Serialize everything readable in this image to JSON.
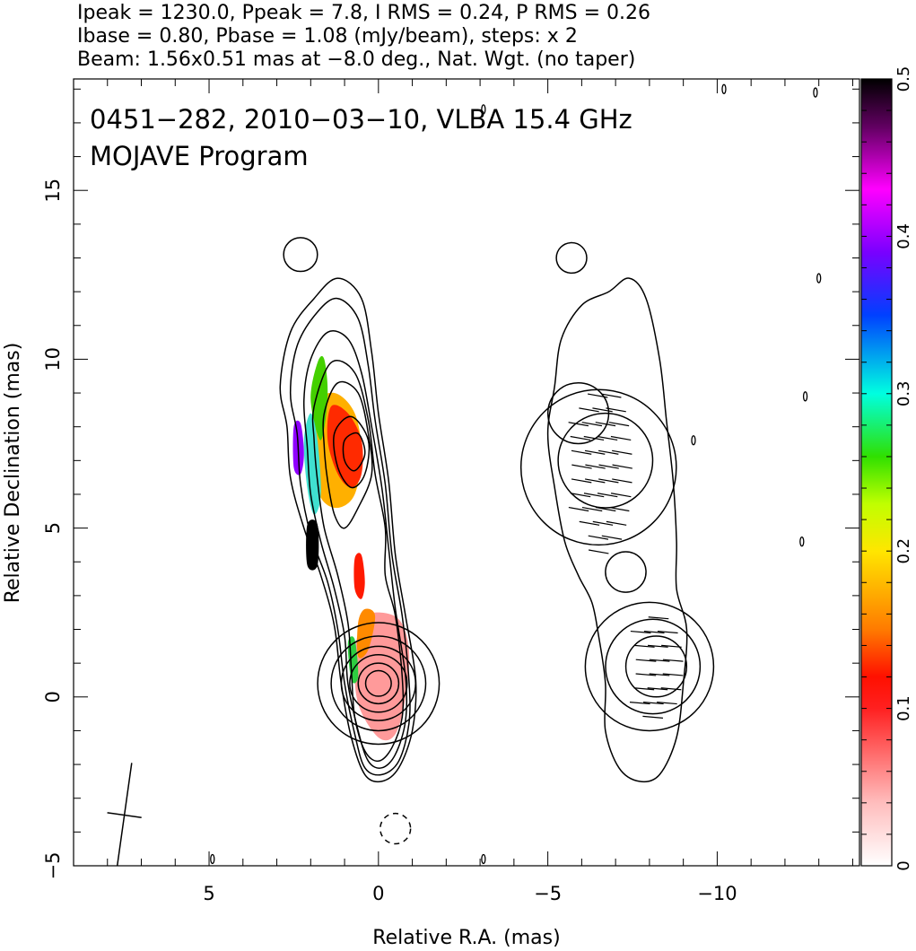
{
  "header": {
    "line1": "Ipeak = 1230.0, Ppeak = 7.8, I RMS = 0.24, P RMS = 0.26",
    "line2": "Ibase = 0.80, Pbase = 1.08 (mJy/beam), steps: x 2",
    "line3": "Beam: 1.56x0.51 mas at −8.0 deg., Nat. Wgt. (no taper)"
  },
  "chart_data": {
    "type": "contour",
    "title_line1": "0451−282, 2010−03−10, VLBA 15.4 GHz",
    "title_line2": "MOJAVE Program",
    "xlabel": "Relative R.A. (mas)",
    "ylabel": "Relative Declination (mas)",
    "xlim": [
      9.0,
      -14.2
    ],
    "ylim": [
      -5.0,
      18.3
    ],
    "x_ticks": [
      5,
      0,
      -5,
      -10
    ],
    "x_tick_labels": [
      "5",
      "0",
      "−5",
      "−10"
    ],
    "y_ticks": [
      -5,
      0,
      5,
      10,
      15
    ],
    "y_tick_labels": [
      "−5",
      "0",
      "5",
      "10",
      "15"
    ],
    "colorbar": {
      "range": [
        0,
        0.5
      ],
      "ticks": [
        0,
        0.1,
        0.2,
        0.3,
        0.4,
        0.5
      ],
      "tick_labels": [
        "0",
        "0.1",
        "0.2",
        "0.3",
        "0.4",
        "0.5"
      ]
    },
    "beam": {
      "major_mas": 1.56,
      "minor_mas": 0.51,
      "pa_deg": -8.0,
      "center": [
        7.5,
        -3.5
      ]
    },
    "left_panel": {
      "description": "Total intensity contours with fractional polarization color overlay",
      "contours": [
        [
          [
            2.9,
            9.2
          ],
          [
            2.6,
            10.8
          ],
          [
            1.9,
            11.8
          ],
          [
            1.2,
            12.4
          ],
          [
            0.5,
            11.8
          ],
          [
            0.2,
            10.2
          ],
          [
            0.0,
            8.4
          ],
          [
            -0.3,
            6.4
          ],
          [
            -0.5,
            4.2
          ],
          [
            -0.8,
            2.4
          ],
          [
            -1.1,
            0.5
          ],
          [
            -1.0,
            -1.0
          ],
          [
            -0.6,
            -2.1
          ],
          [
            -0.1,
            -2.5
          ],
          [
            0.4,
            -2.3
          ],
          [
            0.8,
            -1.2
          ],
          [
            1.1,
            0.4
          ],
          [
            1.3,
            2.1
          ],
          [
            1.7,
            3.6
          ],
          [
            2.2,
            5.0
          ],
          [
            2.6,
            6.5
          ],
          [
            2.7,
            8.0
          ]
        ],
        [
          [
            2.6,
            9.0
          ],
          [
            2.4,
            10.4
          ],
          [
            1.8,
            11.4
          ],
          [
            1.2,
            11.8
          ],
          [
            0.6,
            11.2
          ],
          [
            0.3,
            9.8
          ],
          [
            0.1,
            8.2
          ],
          [
            -0.2,
            6.3
          ],
          [
            -0.4,
            4.2
          ],
          [
            -0.7,
            2.4
          ],
          [
            -0.9,
            0.5
          ],
          [
            -0.9,
            -0.8
          ],
          [
            -0.6,
            -1.9
          ],
          [
            -0.1,
            -2.3
          ],
          [
            0.4,
            -2.1
          ],
          [
            0.7,
            -1.1
          ],
          [
            1.0,
            0.4
          ],
          [
            1.2,
            2.0
          ],
          [
            1.5,
            3.4
          ],
          [
            2.0,
            4.8
          ],
          [
            2.3,
            6.3
          ],
          [
            2.4,
            7.8
          ]
        ],
        [
          [
            2.2,
            8.8
          ],
          [
            2.0,
            10.0
          ],
          [
            1.5,
            10.8
          ],
          [
            0.9,
            10.6
          ],
          [
            0.5,
            9.6
          ],
          [
            0.2,
            8.0
          ],
          [
            -0.1,
            6.2
          ],
          [
            -0.3,
            4.4
          ],
          [
            -0.5,
            2.6
          ],
          [
            -0.8,
            0.6
          ],
          [
            -0.8,
            -0.7
          ],
          [
            -0.5,
            -1.7
          ],
          [
            -0.1,
            -2.1
          ],
          [
            0.3,
            -1.9
          ],
          [
            0.6,
            -1.0
          ],
          [
            0.9,
            0.4
          ],
          [
            1.0,
            1.8
          ],
          [
            1.3,
            3.2
          ],
          [
            1.7,
            4.6
          ],
          [
            2.0,
            6.0
          ],
          [
            2.1,
            7.4
          ]
        ],
        [
          [
            1.9,
            8.6
          ],
          [
            1.4,
            9.9
          ],
          [
            0.7,
            9.6
          ],
          [
            0.3,
            8.2
          ],
          [
            0.1,
            6.6
          ],
          [
            -0.2,
            5.0
          ],
          [
            -0.2,
            3.6
          ],
          [
            -0.5,
            2.4
          ],
          [
            -0.7,
            0.6
          ],
          [
            -0.7,
            -0.6
          ],
          [
            -0.4,
            -1.5
          ],
          [
            0.0,
            -1.9
          ],
          [
            0.4,
            -1.6
          ],
          [
            0.7,
            -0.6
          ],
          [
            0.8,
            0.8
          ],
          [
            0.9,
            2.2
          ],
          [
            1.2,
            3.6
          ],
          [
            1.6,
            5.0
          ],
          [
            1.8,
            6.4
          ],
          [
            1.9,
            7.6
          ]
        ],
        [
          [
            1.6,
            8.4
          ],
          [
            1.2,
            9.3
          ],
          [
            0.6,
            9.0
          ],
          [
            0.3,
            7.8
          ],
          [
            0.2,
            6.6
          ],
          [
            0.6,
            5.6
          ],
          [
            1.0,
            5.0
          ],
          [
            1.3,
            5.4
          ],
          [
            1.5,
            6.4
          ],
          [
            1.6,
            7.4
          ]
        ],
        [
          [
            1.3,
            7.8
          ],
          [
            0.8,
            8.3
          ],
          [
            0.3,
            7.6
          ],
          [
            0.4,
            6.6
          ],
          [
            0.8,
            6.2
          ],
          [
            1.2,
            6.8
          ]
        ],
        [
          [
            1.0,
            7.6
          ],
          [
            0.6,
            7.8
          ],
          [
            0.4,
            7.2
          ],
          [
            0.7,
            6.7
          ],
          [
            1.0,
            7.0
          ]
        ]
      ],
      "core_contour_radii": [
        [
          0.55,
          1.8
        ],
        [
          0.45,
          1.4
        ],
        [
          0.36,
          1.1
        ],
        [
          0.28,
          0.85
        ],
        [
          0.2,
          0.6
        ],
        [
          0.13,
          0.38
        ]
      ],
      "core_center": [
        0.0,
        0.4
      ],
      "small_contours": [
        [
          [
            2.3,
            13.1
          ],
          [
            0.17,
            0.5
          ]
        ],
        [
          [
            -0.5,
            -3.9
          ],
          [
            0.15,
            0.45
          ]
        ]
      ],
      "polarization_regions": [
        {
          "center": [
            1.4,
            7.2
          ],
          "color": "#ff7a00",
          "note": "upper jet region, frac. pol. ~0.1-0.2"
        },
        {
          "center": [
            0.9,
            7.4
          ],
          "color": "#ff2a00",
          "note": "red ~0.08"
        },
        {
          "center": [
            2.4,
            7.4
          ],
          "color": "#8f00ff",
          "note": "edge violet ~0.4"
        },
        {
          "center": [
            2.0,
            4.4
          ],
          "color": "#000000",
          "note": "black ~0.5"
        },
        {
          "center": [
            0.6,
            3.5
          ],
          "color": "#ff1a00",
          "note": "red ~0.08"
        },
        {
          "center": [
            -0.1,
            0.5
          ],
          "color": "#ff9a9a",
          "note": "core, low frac. pol."
        }
      ]
    },
    "right_panel": {
      "description": "Lowest total intensity contour with polarized intensity contours and EVPA vectors",
      "outer_contour": [
        [
          -5.2,
          9.2
        ],
        [
          -5.4,
          10.6
        ],
        [
          -6.0,
          11.6
        ],
        [
          -6.8,
          12.0
        ],
        [
          -7.4,
          12.4
        ],
        [
          -7.9,
          11.8
        ],
        [
          -8.3,
          10.0
        ],
        [
          -8.5,
          8.2
        ],
        [
          -8.7,
          6.4
        ],
        [
          -8.8,
          4.6
        ],
        [
          -8.8,
          3.2
        ],
        [
          -9.1,
          2.0
        ],
        [
          -9.0,
          0.4
        ],
        [
          -8.8,
          -1.2
        ],
        [
          -8.3,
          -2.3
        ],
        [
          -7.7,
          -2.5
        ],
        [
          -7.1,
          -2.1
        ],
        [
          -6.7,
          -1.0
        ],
        [
          -6.7,
          0.4
        ],
        [
          -6.5,
          1.8
        ],
        [
          -6.3,
          2.8
        ],
        [
          -5.9,
          3.6
        ],
        [
          -5.5,
          4.6
        ],
        [
          -5.2,
          6.2
        ],
        [
          -5.0,
          7.8
        ]
      ],
      "pol_contours": [
        [
          [
            -6.5,
            6.8
          ],
          [
            0.9,
            2.3
          ]
        ],
        [
          [
            -6.7,
            7.0
          ],
          [
            0.55,
            1.4
          ]
        ],
        [
          [
            -8.0,
            0.9
          ],
          [
            0.8,
            1.9
          ]
        ],
        [
          [
            -8.1,
            0.9
          ],
          [
            0.55,
            1.4
          ]
        ],
        [
          [
            -8.2,
            0.9
          ],
          [
            0.35,
            0.9
          ]
        ],
        [
          [
            -7.3,
            3.7
          ],
          [
            0.2,
            0.6
          ]
        ],
        [
          [
            -5.9,
            8.4
          ],
          [
            0.25,
            0.9
          ]
        ],
        [
          [
            -5.7,
            13.0
          ],
          [
            0.18,
            0.45
          ]
        ]
      ],
      "vectors": {
        "upper": {
          "center": [
            -6.5,
            6.8
          ],
          "angle_deg": 10
        },
        "lower": {
          "center": [
            -8.1,
            0.9
          ],
          "angle_deg": 5
        }
      }
    },
    "noise_specks": [
      [
        -10.2,
        18.0
      ],
      [
        -12.9,
        17.9
      ],
      [
        -13.0,
        12.4
      ],
      [
        -12.6,
        8.9
      ],
      [
        -9.3,
        7.6
      ],
      [
        -12.5,
        4.6
      ],
      [
        4.9,
        -4.8
      ],
      [
        -3.1,
        -4.8
      ],
      [
        -3.1,
        17.4
      ]
    ]
  }
}
